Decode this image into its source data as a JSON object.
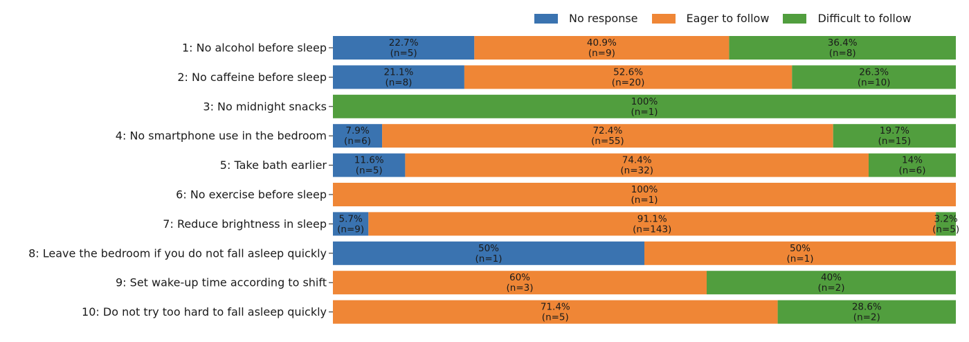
{
  "colors": {
    "no_response": "#3a73b0",
    "eager": "#ef8636",
    "difficult": "#519e3e"
  },
  "chart_data": {
    "type": "bar",
    "orientation": "horizontal",
    "stacked": "percent",
    "legend_position": "top-right",
    "grid": false,
    "series": [
      {
        "name": "No response",
        "color": "#3a73b0"
      },
      {
        "name": "Eager to follow",
        "color": "#ef8636"
      },
      {
        "name": "Difficult to follow",
        "color": "#519e3e"
      }
    ],
    "categories": [
      "1: No alcohol before sleep",
      "2: No caffeine before sleep",
      "3: No midnight snacks",
      "4: No smartphone use in the bedroom",
      "5: Take bath earlier",
      "6: No exercise before sleep",
      "7: Reduce brightness in sleep",
      "8: Leave the bedroom if you do not fall asleep quickly",
      "9: Set wake-up time according to shift",
      "10: Do not try too hard to fall asleep quickly"
    ],
    "rows": [
      {
        "segments": [
          {
            "series": 0,
            "value": 22.7,
            "label": "22.7%",
            "n": "(n=5)"
          },
          {
            "series": 1,
            "value": 40.9,
            "label": "40.9%",
            "n": "(n=9)"
          },
          {
            "series": 2,
            "value": 36.4,
            "label": "36.4%",
            "n": "(n=8)"
          }
        ]
      },
      {
        "segments": [
          {
            "series": 0,
            "value": 21.1,
            "label": "21.1%",
            "n": "(n=8)"
          },
          {
            "series": 1,
            "value": 52.6,
            "label": "52.6%",
            "n": "(n=20)"
          },
          {
            "series": 2,
            "value": 26.3,
            "label": "26.3%",
            "n": "(n=10)"
          }
        ]
      },
      {
        "segments": [
          {
            "series": 2,
            "value": 100,
            "label": "100%",
            "n": "(n=1)"
          }
        ]
      },
      {
        "segments": [
          {
            "series": 0,
            "value": 7.9,
            "label": "7.9%",
            "n": "(n=6)"
          },
          {
            "series": 1,
            "value": 72.4,
            "label": "72.4%",
            "n": "(n=55)"
          },
          {
            "series": 2,
            "value": 19.7,
            "label": "19.7%",
            "n": "(n=15)"
          }
        ]
      },
      {
        "segments": [
          {
            "series": 0,
            "value": 11.6,
            "label": "11.6%",
            "n": "(n=5)"
          },
          {
            "series": 1,
            "value": 74.4,
            "label": "74.4%",
            "n": "(n=32)"
          },
          {
            "series": 2,
            "value": 14,
            "label": "14%",
            "n": "(n=6)"
          }
        ]
      },
      {
        "segments": [
          {
            "series": 1,
            "value": 100,
            "label": "100%",
            "n": "(n=1)"
          }
        ]
      },
      {
        "segments": [
          {
            "series": 0,
            "value": 5.7,
            "label": "5.7%",
            "n": "(n=9)"
          },
          {
            "series": 1,
            "value": 91.1,
            "label": "91.1%",
            "n": "(n=143)"
          },
          {
            "series": 2,
            "value": 3.2,
            "label": "3.2%",
            "n": "(n=5)"
          }
        ]
      },
      {
        "segments": [
          {
            "series": 0,
            "value": 50,
            "label": "50%",
            "n": "(n=1)"
          },
          {
            "series": 1,
            "value": 50,
            "label": "50%",
            "n": "(n=1)"
          }
        ]
      },
      {
        "segments": [
          {
            "series": 1,
            "value": 60,
            "label": "60%",
            "n": "(n=3)"
          },
          {
            "series": 2,
            "value": 40,
            "label": "40%",
            "n": "(n=2)"
          }
        ]
      },
      {
        "segments": [
          {
            "series": 1,
            "value": 71.4,
            "label": "71.4%",
            "n": "(n=5)"
          },
          {
            "series": 2,
            "value": 28.6,
            "label": "28.6%",
            "n": "(n=2)"
          }
        ]
      }
    ]
  }
}
